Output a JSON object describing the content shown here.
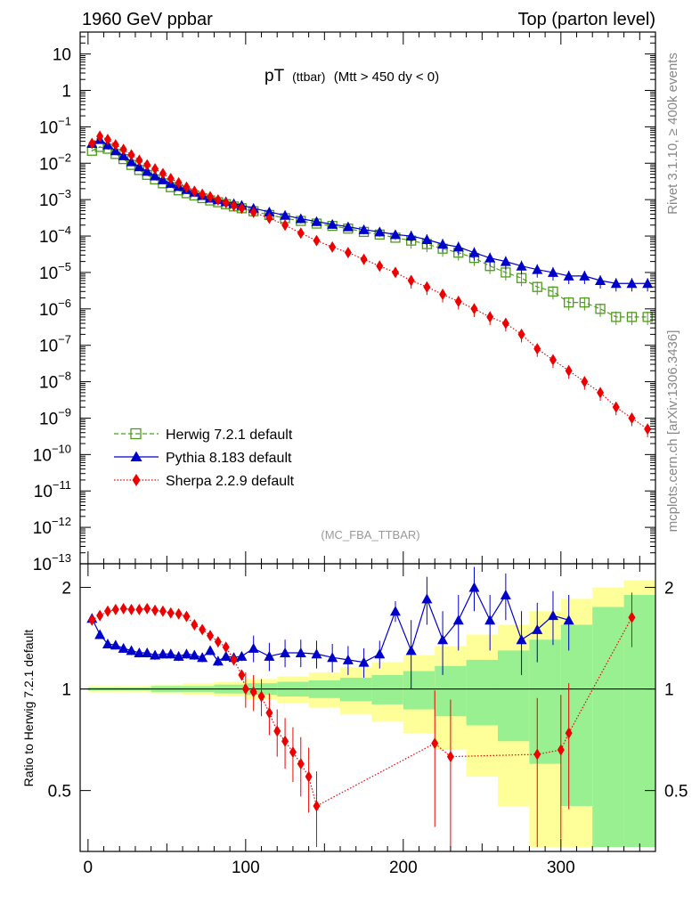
{
  "header": {
    "left": "1960 GeV ppbar",
    "right": "Top (parton level)"
  },
  "side": {
    "rivet": "Rivet 3.1.10, ≥ 400k events",
    "mcplots": "mcplots.cern.ch [arXiv:1306.3436]"
  },
  "chart_data": [
    {
      "type": "line",
      "panel": "main",
      "title_main": "pT",
      "title_sub": "(ttbar)",
      "title_cut": "(Mtt > 450 dy < 0)",
      "watermark": "(MC_FBA_TTBAR)",
      "yscale": "log",
      "ylim": [
        1e-13,
        40
      ],
      "xlim": [
        -5,
        360
      ],
      "yticks": [
        {
          "v": 10,
          "label": "10"
        },
        {
          "v": 1,
          "label": "1"
        },
        {
          "v": 0.1,
          "m": "10",
          "e": "−1"
        },
        {
          "v": 0.01,
          "m": "10",
          "e": "−2"
        },
        {
          "v": 0.001,
          "m": "10",
          "e": "−3"
        },
        {
          "v": 0.0001,
          "m": "10",
          "e": "−4"
        },
        {
          "v": 1e-05,
          "m": "10",
          "e": "−5"
        },
        {
          "v": 1e-06,
          "m": "10",
          "e": "−6"
        },
        {
          "v": 1e-07,
          "m": "10",
          "e": "−7"
        },
        {
          "v": 1e-08,
          "m": "10",
          "e": "−8"
        },
        {
          "v": 1e-09,
          "m": "10",
          "e": "−9"
        },
        {
          "v": 1e-10,
          "m": "10",
          "e": "−10"
        },
        {
          "v": 1e-11,
          "m": "10",
          "e": "−11"
        },
        {
          "v": 1e-12,
          "m": "10",
          "e": "−12"
        },
        {
          "v": 1e-13,
          "m": "10",
          "e": "−13"
        }
      ],
      "series": [
        {
          "name": "Herwig 7.2.1 default",
          "color": "#4e9a1e",
          "marker": "open-square",
          "x": [
            2.5,
            7.5,
            12.5,
            17.5,
            22.5,
            27.5,
            32.5,
            37.5,
            42.5,
            47.5,
            52.5,
            57.5,
            62.5,
            67.5,
            72.5,
            77.5,
            82.5,
            87.5,
            92.5,
            97.5,
            105,
            115,
            125,
            135,
            145,
            155,
            165,
            175,
            185,
            195,
            205,
            215,
            225,
            235,
            245,
            255,
            265,
            275,
            285,
            295,
            305,
            315,
            325,
            335,
            345,
            355
          ],
          "y": [
            0.022,
            0.028,
            0.025,
            0.018,
            0.013,
            0.009,
            0.0065,
            0.0048,
            0.0036,
            0.0028,
            0.0022,
            0.0018,
            0.0015,
            0.0013,
            0.0011,
            0.00095,
            0.00085,
            0.00075,
            0.00065,
            0.00058,
            0.00048,
            0.00038,
            0.00031,
            0.00026,
            0.00022,
            0.00019,
            0.00016,
            0.00013,
            0.00011,
            9e-05,
            7.5e-05,
            6e-05,
            4.5e-05,
            3.5e-05,
            2.5e-05,
            1.5e-05,
            1e-05,
            7e-06,
            4e-06,
            3e-06,
            1.5e-06,
            1.5e-06,
            1e-06,
            6e-07,
            6e-07,
            6e-07
          ]
        },
        {
          "name": "Pythia 8.183 default",
          "color": "#0000cc",
          "marker": "filled-triangle",
          "x": [
            2.5,
            7.5,
            12.5,
            17.5,
            22.5,
            27.5,
            32.5,
            37.5,
            42.5,
            47.5,
            52.5,
            57.5,
            62.5,
            67.5,
            72.5,
            77.5,
            82.5,
            87.5,
            92.5,
            97.5,
            105,
            115,
            125,
            135,
            145,
            155,
            165,
            175,
            185,
            195,
            205,
            215,
            225,
            235,
            245,
            255,
            265,
            275,
            285,
            295,
            305,
            315,
            325,
            335,
            345,
            355
          ],
          "y": [
            0.035,
            0.045,
            0.032,
            0.022,
            0.016,
            0.011,
            0.008,
            0.006,
            0.0045,
            0.0035,
            0.0028,
            0.0023,
            0.0019,
            0.0016,
            0.0013,
            0.0011,
            0.001,
            0.00088,
            0.00078,
            0.0007,
            0.00058,
            0.00046,
            0.00037,
            0.0003,
            0.00025,
            0.00021,
            0.00018,
            0.00015,
            0.00013,
            0.00011,
            0.0001,
            8e-05,
            6e-05,
            5e-05,
            3.5e-05,
            2.5e-05,
            2e-05,
            1.5e-05,
            1.2e-05,
            1e-05,
            8e-06,
            8e-06,
            6e-06,
            5e-06,
            5e-06,
            5e-06
          ]
        },
        {
          "name": "Sherpa 2.2.9 default",
          "color": "#ee0000",
          "marker": "filled-diamond",
          "x": [
            2.5,
            7.5,
            12.5,
            17.5,
            22.5,
            27.5,
            32.5,
            37.5,
            42.5,
            47.5,
            52.5,
            57.5,
            62.5,
            67.5,
            72.5,
            77.5,
            82.5,
            87.5,
            92.5,
            97.5,
            105,
            115,
            125,
            135,
            145,
            155,
            165,
            175,
            185,
            195,
            205,
            215,
            225,
            235,
            245,
            255,
            265,
            275,
            285,
            295,
            305,
            315,
            325,
            335,
            345,
            355
          ],
          "y": [
            0.035,
            0.055,
            0.045,
            0.032,
            0.024,
            0.017,
            0.012,
            0.009,
            0.007,
            0.0052,
            0.0038,
            0.0029,
            0.0022,
            0.0017,
            0.0014,
            0.0012,
            0.00098,
            0.00082,
            0.00068,
            0.00058,
            0.00045,
            0.00031,
            0.0002,
            0.00012,
            7.5e-05,
            5e-05,
            3.5e-05,
            2.3e-05,
            1.5e-05,
            1e-05,
            6e-06,
            4e-06,
            2.5e-06,
            1.6e-06,
            1e-06,
            6e-07,
            4e-07,
            2e-07,
            8e-08,
            4e-08,
            2e-08,
            1e-08,
            5e-09,
            2e-09,
            1e-09,
            5e-10
          ]
        }
      ],
      "legend_position": "bottom-left"
    },
    {
      "type": "line",
      "panel": "ratio",
      "ylabel": "Ratio to Herwig 7.2.1 default",
      "ylim": [
        0.33,
        2.35
      ],
      "xlim": [
        -5,
        360
      ],
      "yticks": [
        {
          "v": 2,
          "label": "2"
        },
        {
          "v": 1,
          "label": "1"
        },
        {
          "v": 0.5,
          "label": "0.5"
        }
      ],
      "xticks": [
        {
          "v": 0,
          "label": "0"
        },
        {
          "v": 100,
          "label": "100"
        },
        {
          "v": 200,
          "label": "200"
        },
        {
          "v": 300,
          "label": "300"
        }
      ],
      "reference": 1,
      "band_colors": {
        "inner": "#98f090",
        "outer": "#ffff99"
      },
      "band_x": [
        0,
        20,
        40,
        60,
        80,
        100,
        120,
        140,
        160,
        180,
        200,
        220,
        240,
        260,
        280,
        300,
        320,
        340,
        360
      ],
      "band_inner": [
        0.01,
        0.01,
        0.02,
        0.02,
        0.03,
        0.04,
        0.05,
        0.06,
        0.08,
        0.1,
        0.13,
        0.17,
        0.22,
        0.3,
        0.4,
        0.55,
        0.75,
        0.9,
        0.95
      ],
      "band_outer": [
        0.02,
        0.02,
        0.03,
        0.04,
        0.05,
        0.07,
        0.09,
        0.12,
        0.16,
        0.2,
        0.26,
        0.34,
        0.45,
        0.55,
        0.7,
        0.85,
        1.0,
        1.1,
        1.2
      ],
      "series": [
        {
          "name": "Pythia 8.183 default",
          "color": "#0000cc",
          "x": [
            2.5,
            7.5,
            12.5,
            17.5,
            22.5,
            27.5,
            32.5,
            37.5,
            42.5,
            47.5,
            52.5,
            57.5,
            62.5,
            67.5,
            72.5,
            77.5,
            82.5,
            87.5,
            92.5,
            97.5,
            105,
            115,
            125,
            135,
            145,
            155,
            165,
            175,
            185,
            195,
            205,
            215,
            225,
            235,
            245,
            255,
            265,
            275,
            285,
            295,
            305
          ],
          "y": [
            1.62,
            1.45,
            1.36,
            1.35,
            1.32,
            1.3,
            1.28,
            1.28,
            1.26,
            1.27,
            1.27,
            1.25,
            1.27,
            1.26,
            1.24,
            1.3,
            1.21,
            1.25,
            1.24,
            1.25,
            1.32,
            1.25,
            1.28,
            1.28,
            1.27,
            1.24,
            1.22,
            1.2,
            1.27,
            1.7,
            1.3,
            1.85,
            1.4,
            1.6,
            2.0,
            1.6,
            1.9,
            1.4,
            1.5,
            1.65,
            1.6
          ]
        },
        {
          "name": "Sherpa 2.2.9 default",
          "color": "#ee0000",
          "x": [
            2.5,
            7.5,
            12.5,
            17.5,
            22.5,
            27.5,
            32.5,
            37.5,
            42.5,
            47.5,
            52.5,
            57.5,
            62.5,
            67.5,
            72.5,
            77.5,
            82.5,
            87.5,
            92.5,
            97.5,
            100,
            105,
            110,
            115,
            120,
            125,
            130,
            135,
            140,
            145,
            220,
            230,
            285,
            300,
            305,
            345
          ],
          "y": [
            1.6,
            1.65,
            1.7,
            1.72,
            1.73,
            1.72,
            1.72,
            1.73,
            1.71,
            1.7,
            1.68,
            1.67,
            1.64,
            1.55,
            1.5,
            1.44,
            1.38,
            1.33,
            1.22,
            1.1,
            1.0,
            0.98,
            0.95,
            0.85,
            0.75,
            0.7,
            0.65,
            0.6,
            0.55,
            0.45,
            0.69,
            0.63,
            0.64,
            0.66,
            0.74,
            1.63
          ]
        }
      ]
    }
  ]
}
